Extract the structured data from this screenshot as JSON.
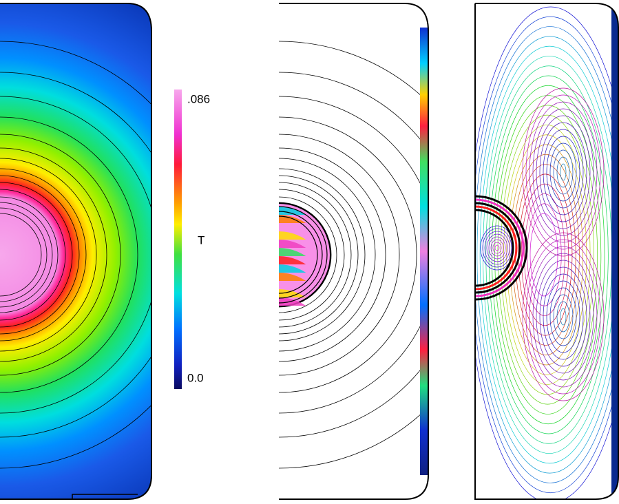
{
  "colorbar": {
    "title": "T",
    "max_label": ".086",
    "min_label": "0.0"
  }
}
